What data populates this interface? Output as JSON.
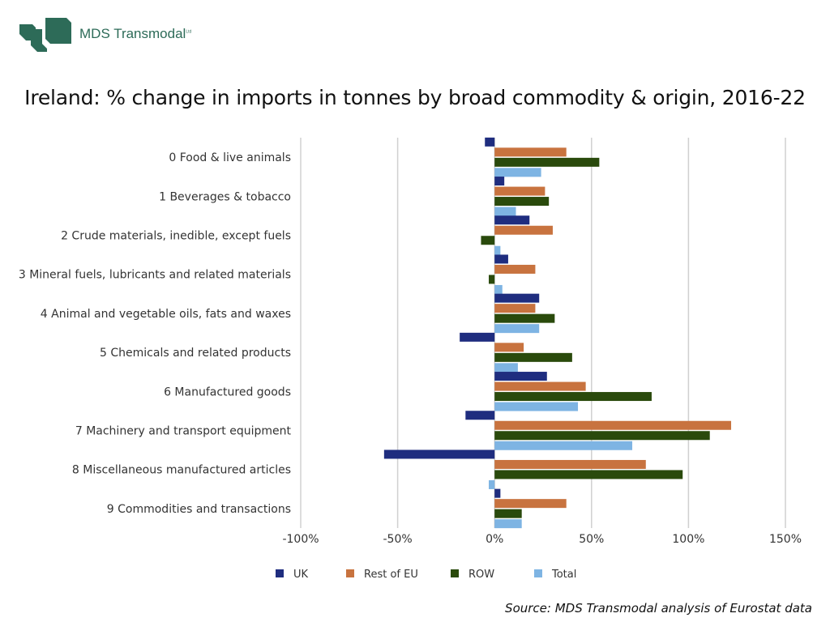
{
  "logo": {
    "name": "MDS Transmodal",
    "suffix": "Ltd"
  },
  "source": "Source: MDS Transmodal analysis of Eurostat data",
  "chart_data": {
    "type": "bar",
    "orientation": "horizontal",
    "title": "Ireland: % change in imports in tonnes by broad commodity & origin, 2016-22",
    "xlabel": "",
    "ylabel": "",
    "xlim": [
      -100,
      150
    ],
    "ticks": [
      -100,
      -50,
      0,
      50,
      100,
      150
    ],
    "tick_labels": [
      "-100%",
      "-50%",
      "0%",
      "50%",
      "100%",
      "150%"
    ],
    "grid": true,
    "legend_position": "bottom",
    "categories": [
      "0 Food & live animals",
      "1 Beverages & tobacco",
      "2 Crude materials, inedible, except fuels",
      "3 Mineral fuels, lubricants and related materials",
      "4 Animal and vegetable oils, fats and waxes",
      "5 Chemicals and related products",
      "6 Manufactured goods",
      "7 Machinery and transport equipment",
      "8 Miscellaneous manufactured articles",
      "9 Commodities and transactions"
    ],
    "series": [
      {
        "name": "UK",
        "color": "#1f2d7f",
        "values": [
          -5,
          5,
          18,
          7,
          23,
          -18,
          27,
          -15,
          -57,
          3
        ]
      },
      {
        "name": "Rest of EU",
        "color": "#c8733f",
        "values": [
          37,
          26,
          30,
          21,
          21,
          15,
          47,
          122,
          78,
          37
        ]
      },
      {
        "name": "ROW",
        "color": "#2a4a0c",
        "values": [
          54,
          28,
          -7,
          -3,
          31,
          40,
          81,
          111,
          97,
          14
        ]
      },
      {
        "name": "Total",
        "color": "#7eb4e3",
        "values": [
          24,
          11,
          3,
          4,
          23,
          12,
          43,
          71,
          -3,
          14
        ]
      }
    ]
  }
}
